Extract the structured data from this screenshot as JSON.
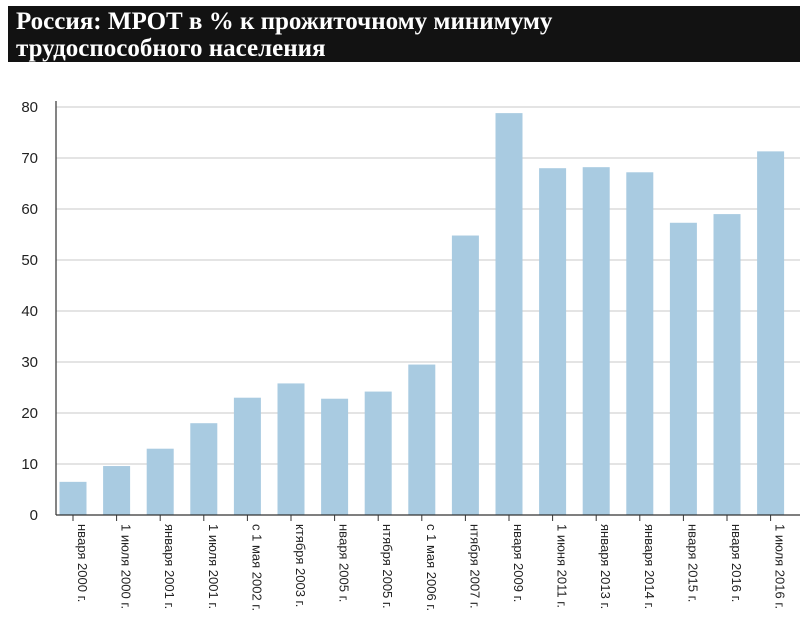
{
  "title": {
    "line1": "Россия: МРОТ в % к прожиточному минимуму",
    "line2": "трудоспособного населения"
  },
  "colors": {
    "bar": "#a9cbe1",
    "grid": "#c8c8c8",
    "axis": "#333333",
    "title_bg": "#121212",
    "title_text": "#ffffff"
  },
  "chart_data": {
    "type": "bar",
    "title": "Россия: МРОТ в % к прожиточному минимуму трудоспособного населения",
    "categories": [
      "нвaря 2000 г.",
      "1 июля 2000 г.",
      "января 2001 г.",
      "1 июля 2001 г.",
      "с 1 мая 2002 г.",
      "ктября 2003 г.",
      "нвaря 2005 г.",
      "нтября 2005 г.",
      "с 1 мая 2006 г.",
      "нтября 2007 г.",
      "нвaря 2009 г.",
      "1 июня 2011 г.",
      "января 2013 г.",
      "января 2014 г.",
      "нвaря 2015 г.",
      "нвaря 2016 г.",
      "1 июля 2016 г."
    ],
    "values": [
      6.5,
      9.6,
      13,
      18,
      23,
      25.8,
      22.8,
      24.2,
      29.5,
      54.8,
      78.8,
      68,
      68.2,
      67.2,
      57.3,
      59,
      71.3
    ],
    "ylim": [
      0,
      80
    ],
    "yticks": [
      0,
      10,
      20,
      30,
      40,
      50,
      60,
      70,
      80
    ],
    "grid": true,
    "legend": "none"
  }
}
